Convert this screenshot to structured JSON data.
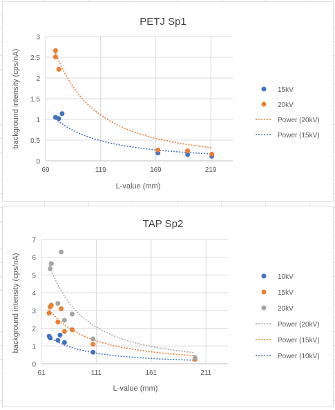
{
  "chart_data": [
    {
      "type": "scatter",
      "title": "PETJ Sp1",
      "xlabel": "L-value (mm)",
      "ylabel": "background intensity (cps/nA)",
      "xlim": [
        69,
        239
      ],
      "ylim": [
        0,
        3
      ],
      "xticks": [
        "69",
        "119",
        "169",
        "219"
      ],
      "yticks": [
        "0",
        "0.5",
        "1",
        "1.5",
        "2",
        "2.5",
        "3"
      ],
      "grid": true,
      "legend_position": "right",
      "series": [
        {
          "name": "15kV",
          "color": "#4472c4",
          "points": [
            [
              78,
              1.05
            ],
            [
              81,
              1.02
            ],
            [
              84,
              1.14
            ],
            [
              171,
              0.19
            ],
            [
              198,
              0.15
            ],
            [
              220,
              0.11
            ]
          ]
        },
        {
          "name": "20kV",
          "color": "#ed7d31",
          "points": [
            [
              78,
              2.51
            ],
            [
              78,
              2.66
            ],
            [
              81,
              2.21
            ],
            [
              171,
              0.26
            ],
            [
              198,
              0.24
            ],
            [
              220,
              0.16
            ]
          ]
        }
      ],
      "trendlines": [
        {
          "name": "Power (20kV)",
          "color": "#ed7d31",
          "a": 18070,
          "b": -2.03
        },
        {
          "name": "Power (15kV)",
          "color": "#4472c4",
          "a": 1990,
          "b": -1.74
        }
      ]
    },
    {
      "type": "scatter",
      "title": "TAP Sp2",
      "xlabel": "L-value (mm)",
      "ylabel": "background intensity (cps/nA)",
      "xlim": [
        61,
        231
      ],
      "ylim": [
        0,
        7
      ],
      "xticks": [
        "61",
        "111",
        "161",
        "211"
      ],
      "yticks": [
        "0",
        "1",
        "2",
        "3",
        "4",
        "5",
        "6",
        "7"
      ],
      "grid": true,
      "legend_position": "right",
      "series": [
        {
          "name": "10kV",
          "color": "#4472c4",
          "points": [
            [
              68,
              1.55
            ],
            [
              69,
              1.45
            ],
            [
              76,
              1.32
            ],
            [
              78,
              1.62
            ],
            [
              82,
              1.2
            ],
            [
              108,
              0.65
            ]
          ]
        },
        {
          "name": "15kV",
          "color": "#ed7d31",
          "points": [
            [
              68,
              2.85
            ],
            [
              69,
              3.2
            ],
            [
              70,
              3.3
            ],
            [
              76,
              2.35
            ],
            [
              79,
              3.1
            ],
            [
              82,
              1.82
            ],
            [
              89,
              1.92
            ],
            [
              108,
              1.1
            ],
            [
              201,
              0.25
            ]
          ]
        },
        {
          "name": "20kV",
          "color": "#a5a5a5",
          "points": [
            [
              69,
              5.35
            ],
            [
              70,
              5.65
            ],
            [
              76,
              3.4
            ],
            [
              79,
              6.3
            ],
            [
              82,
              2.45
            ],
            [
              89,
              2.8
            ],
            [
              108,
              1.4
            ],
            [
              201,
              0.35
            ]
          ]
        }
      ],
      "trendlines": [
        {
          "name": "Power (20kV)",
          "color": "#a5a5a5",
          "a": 28000,
          "b": -2.02
        },
        {
          "name": "Power (15kV)",
          "color": "#ed7d31",
          "a": 4900,
          "b": -1.75
        },
        {
          "name": "Power (10kV)",
          "color": "#4472c4",
          "a": 4000,
          "b": -1.87
        }
      ]
    }
  ]
}
